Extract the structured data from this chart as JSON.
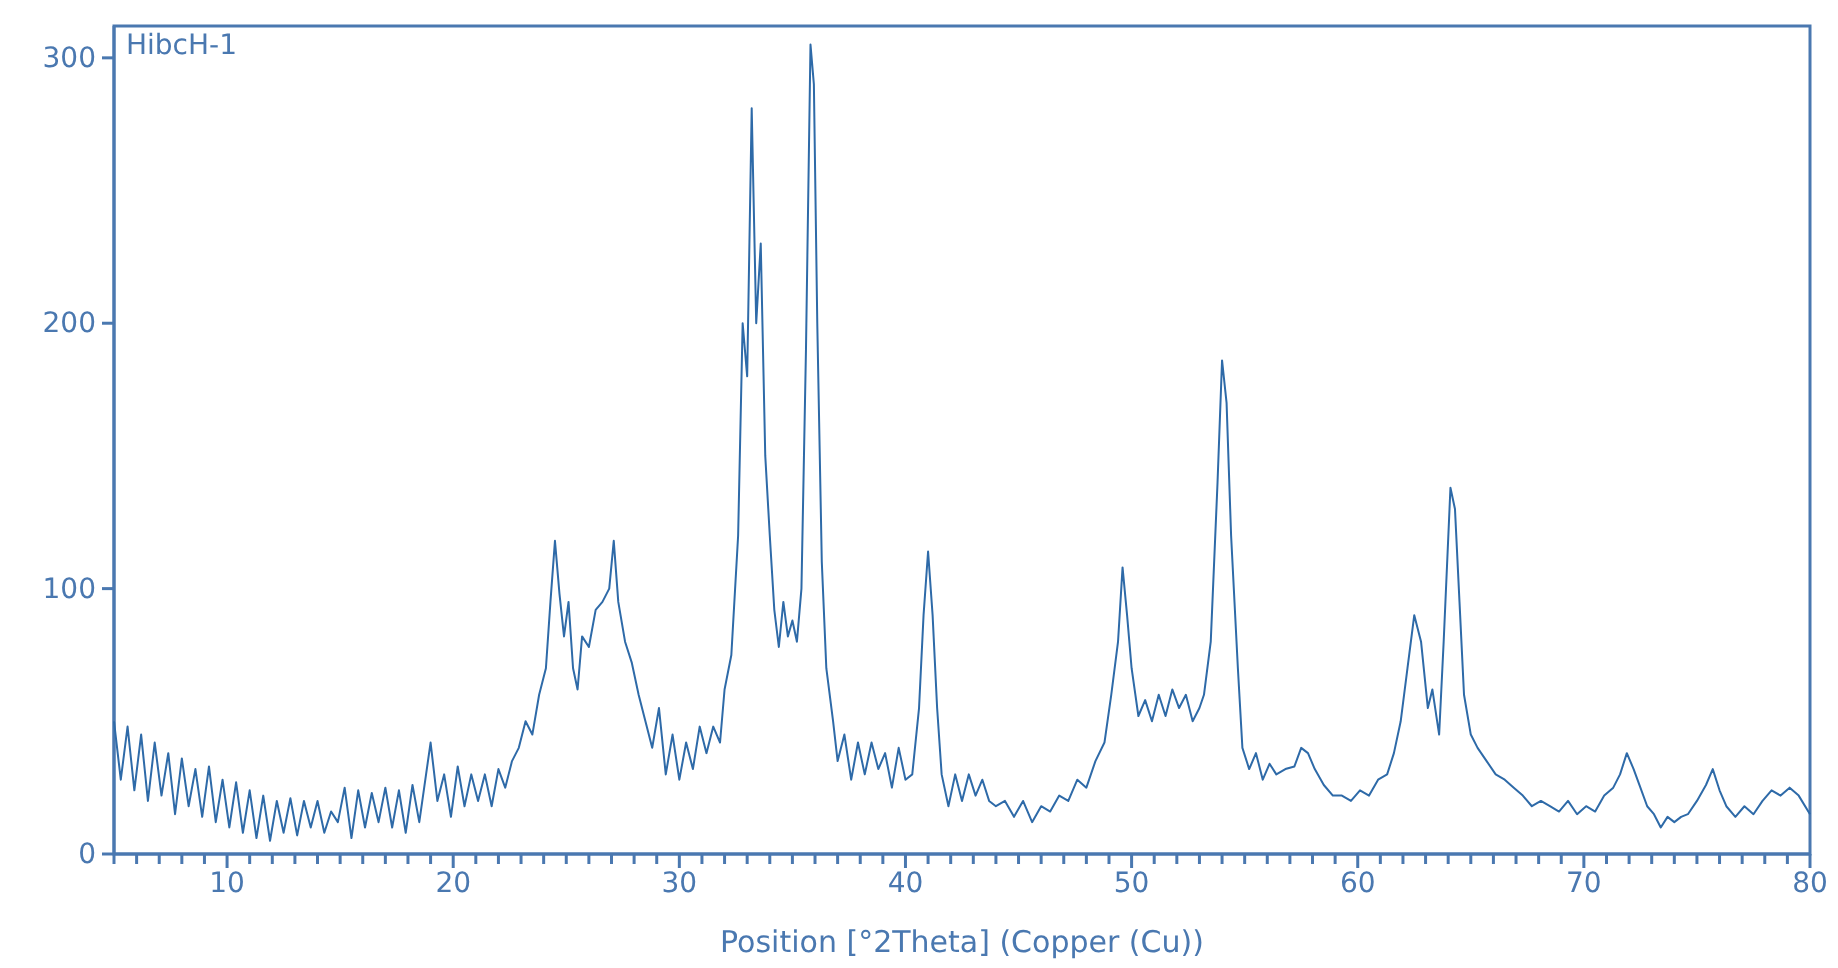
{
  "chart_data": {
    "type": "line",
    "xlabel": "Position [°2Theta] (Copper (Cu))",
    "annotations": [
      "HibcH-1"
    ],
    "xlim": [
      5,
      80
    ],
    "ylim": [
      0,
      312
    ],
    "yticks": [
      0,
      100,
      200,
      300
    ],
    "xticks": [
      {
        "value": 5,
        "label": null
      },
      {
        "value": 6,
        "label": null
      },
      {
        "value": 7,
        "label": null
      },
      {
        "value": 8,
        "label": null
      },
      {
        "value": 9,
        "label": null
      },
      10,
      {
        "value": 11,
        "label": null
      },
      {
        "value": 12,
        "label": null
      },
      {
        "value": 13,
        "label": null
      },
      {
        "value": 14,
        "label": null
      },
      {
        "value": 15,
        "label": null
      },
      {
        "value": 16,
        "label": null
      },
      {
        "value": 17,
        "label": null
      },
      {
        "value": 18,
        "label": null
      },
      {
        "value": 19,
        "label": null
      },
      20,
      {
        "value": 21,
        "label": null
      },
      {
        "value": 22,
        "label": null
      },
      {
        "value": 23,
        "label": null
      },
      {
        "value": 24,
        "label": null
      },
      {
        "value": 25,
        "label": null
      },
      {
        "value": 26,
        "label": null
      },
      {
        "value": 27,
        "label": null
      },
      {
        "value": 28,
        "label": null
      },
      {
        "value": 29,
        "label": null
      },
      30,
      {
        "value": 31,
        "label": null
      },
      {
        "value": 32,
        "label": null
      },
      {
        "value": 33,
        "label": null
      },
      {
        "value": 34,
        "label": null
      },
      {
        "value": 35,
        "label": null
      },
      {
        "value": 36,
        "label": null
      },
      {
        "value": 37,
        "label": null
      },
      {
        "value": 38,
        "label": null
      },
      {
        "value": 39,
        "label": null
      },
      40,
      {
        "value": 41,
        "label": null
      },
      {
        "value": 42,
        "label": null
      },
      {
        "value": 43,
        "label": null
      },
      {
        "value": 44,
        "label": null
      },
      {
        "value": 45,
        "label": null
      },
      {
        "value": 46,
        "label": null
      },
      {
        "value": 47,
        "label": null
      },
      {
        "value": 48,
        "label": null
      },
      {
        "value": 49,
        "label": null
      },
      50,
      {
        "value": 51,
        "label": null
      },
      {
        "value": 52,
        "label": null
      },
      {
        "value": 53,
        "label": null
      },
      {
        "value": 54,
        "label": null
      },
      {
        "value": 55,
        "label": null
      },
      {
        "value": 56,
        "label": null
      },
      {
        "value": 57,
        "label": null
      },
      {
        "value": 58,
        "label": null
      },
      {
        "value": 59,
        "label": null
      },
      60,
      {
        "value": 61,
        "label": null
      },
      {
        "value": 62,
        "label": null
      },
      {
        "value": 63,
        "label": null
      },
      {
        "value": 64,
        "label": null
      },
      {
        "value": 65,
        "label": null
      },
      {
        "value": 66,
        "label": null
      },
      {
        "value": 67,
        "label": null
      },
      {
        "value": 68,
        "label": null
      },
      {
        "value": 69,
        "label": null
      },
      70,
      {
        "value": 71,
        "label": null
      },
      {
        "value": 72,
        "label": null
      },
      {
        "value": 73,
        "label": null
      },
      {
        "value": 74,
        "label": null
      },
      {
        "value": 75,
        "label": null
      },
      {
        "value": 76,
        "label": null
      },
      {
        "value": 77,
        "label": null
      },
      {
        "value": 78,
        "label": null
      },
      {
        "value": 79,
        "label": null
      },
      80
    ],
    "grid": false,
    "marker": "none",
    "line_style": "solid",
    "series": [
      {
        "color": "#2e6aa8",
        "x": [
          5,
          5.3,
          5.6,
          5.9,
          6.2,
          6.5,
          6.8,
          7.1,
          7.4,
          7.7,
          8,
          8.3,
          8.6,
          8.9,
          9.2,
          9.5,
          9.8,
          10.1,
          10.4,
          10.7,
          11,
          11.3,
          11.6,
          11.9,
          12.2,
          12.5,
          12.8,
          13.1,
          13.4,
          13.7,
          14,
          14.3,
          14.6,
          14.9,
          15.2,
          15.5,
          15.8,
          16.1,
          16.4,
          16.7,
          17,
          17.3,
          17.6,
          17.9,
          18.2,
          18.5,
          18.8,
          19,
          19.3,
          19.6,
          19.9,
          20.2,
          20.5,
          20.8,
          21.1,
          21.4,
          21.7,
          22,
          22.3,
          22.6,
          22.9,
          23.2,
          23.5,
          23.8,
          24.1,
          24.3,
          24.5,
          24.7,
          24.9,
          25.1,
          25.3,
          25.5,
          25.7,
          26,
          26.3,
          26.6,
          26.9,
          27.1,
          27.3,
          27.6,
          27.9,
          28.2,
          28.5,
          28.8,
          29.1,
          29.4,
          29.7,
          30,
          30.3,
          30.6,
          30.9,
          31.2,
          31.5,
          31.8,
          32,
          32.3,
          32.6,
          32.8,
          33,
          33.2,
          33.4,
          33.6,
          33.8,
          34,
          34.2,
          34.4,
          34.6,
          34.8,
          35,
          35.2,
          35.4,
          35.6,
          35.8,
          35.95,
          36.1,
          36.3,
          36.5,
          36.8,
          37,
          37.3,
          37.6,
          37.9,
          38.2,
          38.5,
          38.8,
          39.1,
          39.4,
          39.7,
          40,
          40.3,
          40.6,
          40.8,
          41,
          41.2,
          41.4,
          41.6,
          41.9,
          42.2,
          42.5,
          42.8,
          43.1,
          43.4,
          43.7,
          44,
          44.4,
          44.8,
          45.2,
          45.6,
          46,
          46.4,
          46.8,
          47.2,
          47.6,
          48,
          48.4,
          48.8,
          49.1,
          49.4,
          49.6,
          49.8,
          50,
          50.3,
          50.6,
          50.9,
          51.2,
          51.5,
          51.8,
          52.1,
          52.4,
          52.7,
          53,
          53.2,
          53.5,
          53.8,
          54,
          54.2,
          54.4,
          54.7,
          54.9,
          55.2,
          55.5,
          55.8,
          56.1,
          56.4,
          56.8,
          57.2,
          57.5,
          57.8,
          58.1,
          58.5,
          58.9,
          59.3,
          59.7,
          60.1,
          60.5,
          60.9,
          61.3,
          61.6,
          61.9,
          62.2,
          62.5,
          62.8,
          63.1,
          63.3,
          63.6,
          63.8,
          64.1,
          64.3,
          64.5,
          64.7,
          65,
          65.3,
          65.7,
          66.1,
          66.5,
          66.9,
          67.3,
          67.7,
          68.1,
          68.5,
          68.9,
          69.3,
          69.7,
          70.1,
          70.5,
          70.9,
          71.3,
          71.6,
          71.9,
          72.2,
          72.5,
          72.8,
          73.1,
          73.4,
          73.7,
          74,
          74.3,
          74.6,
          75,
          75.4,
          75.7,
          76,
          76.3,
          76.7,
          77.1,
          77.5,
          77.9,
          78.3,
          78.7,
          79.1,
          79.5,
          80
        ],
        "values": [
          50,
          28,
          48,
          24,
          45,
          20,
          42,
          22,
          38,
          15,
          36,
          18,
          32,
          14,
          33,
          12,
          28,
          10,
          27,
          8,
          24,
          6,
          22,
          5,
          20,
          8,
          21,
          7,
          20,
          10,
          20,
          8,
          16,
          12,
          25,
          6,
          24,
          10,
          23,
          12,
          25,
          10,
          24,
          8,
          26,
          12,
          30,
          42,
          20,
          30,
          14,
          33,
          18,
          30,
          20,
          30,
          18,
          32,
          25,
          35,
          40,
          50,
          45,
          60,
          70,
          95,
          118,
          98,
          82,
          95,
          70,
          62,
          82,
          78,
          92,
          95,
          100,
          118,
          95,
          80,
          72,
          60,
          50,
          40,
          55,
          30,
          45,
          28,
          42,
          32,
          48,
          38,
          48,
          42,
          62,
          75,
          120,
          200,
          180,
          281,
          200,
          230,
          150,
          120,
          92,
          78,
          95,
          82,
          88,
          80,
          100,
          190,
          305,
          290,
          200,
          110,
          70,
          50,
          35,
          45,
          28,
          42,
          30,
          42,
          32,
          38,
          25,
          40,
          28,
          30,
          55,
          90,
          114,
          90,
          55,
          30,
          18,
          30,
          20,
          30,
          22,
          28,
          20,
          18,
          20,
          14,
          20,
          12,
          18,
          16,
          22,
          20,
          28,
          25,
          35,
          42,
          60,
          80,
          108,
          90,
          70,
          52,
          58,
          50,
          60,
          52,
          62,
          55,
          60,
          50,
          55,
          60,
          80,
          140,
          186,
          170,
          120,
          70,
          40,
          32,
          38,
          28,
          34,
          30,
          32,
          33,
          40,
          38,
          32,
          26,
          22,
          22,
          20,
          24,
          22,
          28,
          30,
          38,
          50,
          70,
          90,
          80,
          55,
          62,
          45,
          80,
          138,
          130,
          95,
          60,
          45,
          40,
          35,
          30,
          28,
          25,
          22,
          18,
          20,
          18,
          16,
          20,
          15,
          18,
          16,
          22,
          25,
          30,
          38,
          32,
          25,
          18,
          15,
          10,
          14,
          12,
          14,
          15,
          20,
          26,
          32,
          24,
          18,
          14,
          18,
          15,
          20,
          24,
          22,
          25,
          22,
          15
        ]
      }
    ]
  }
}
